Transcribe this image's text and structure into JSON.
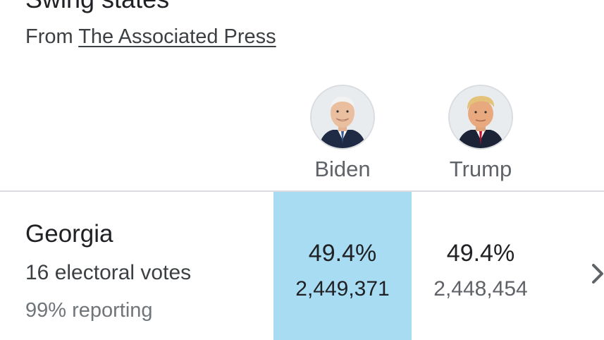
{
  "header": {
    "title": "Swing states",
    "source_prefix": "From ",
    "source_link": "The Associated Press"
  },
  "candidates": [
    {
      "name": "Biden"
    },
    {
      "name": "Trump"
    }
  ],
  "rows": [
    {
      "state": "Georgia",
      "electoral": "16 electoral votes",
      "reporting": "99% reporting",
      "results": [
        {
          "pct": "49.4%",
          "votes": "2,449,371",
          "leading": true
        },
        {
          "pct": "49.4%",
          "votes": "2,448,454",
          "leading": false
        }
      ]
    }
  ],
  "colors": {
    "leading_highlight": "#a8dcf2",
    "divider": "#dadce0"
  },
  "icons": {
    "row_expand": "chevron-right-icon"
  }
}
